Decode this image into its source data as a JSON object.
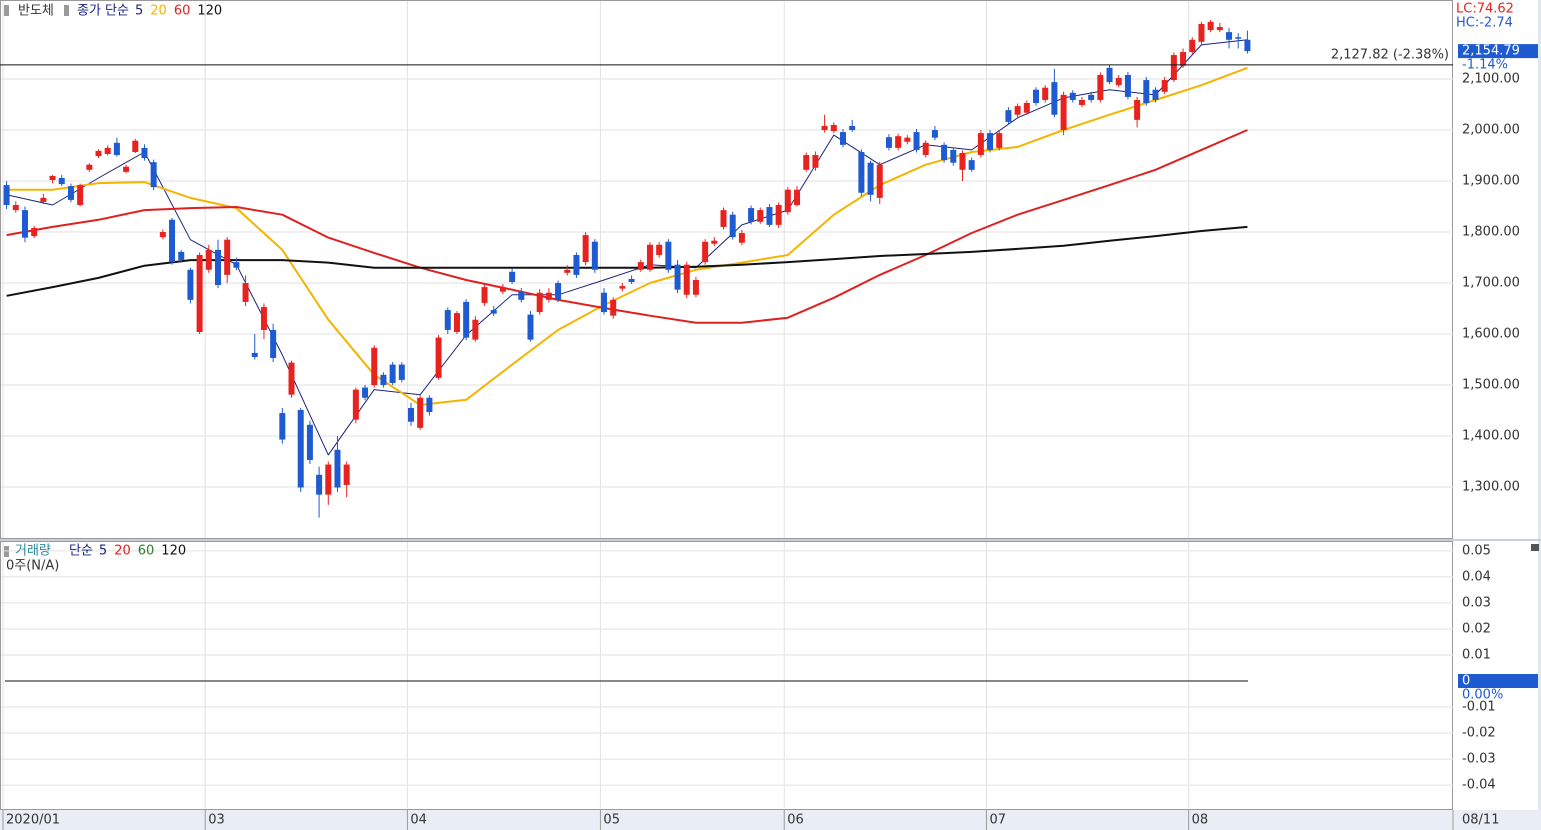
{
  "chart_data": [
    {
      "type": "candlestick",
      "title": "반도체",
      "ma_label": "종가 단순",
      "lc_label": "LC:74.62",
      "hc_label": "HC:-2.74",
      "categories": [
        "2020/01",
        null,
        null,
        null,
        null,
        null,
        null,
        null,
        null,
        null,
        null,
        null,
        null,
        null,
        null,
        null,
        null,
        null,
        null,
        null,
        null,
        null,
        "03",
        null,
        null,
        null,
        null,
        null,
        null,
        null,
        null,
        null,
        null,
        null,
        null,
        null,
        null,
        null,
        null,
        null,
        null,
        null,
        null,
        null,
        "04",
        null,
        null,
        null,
        null,
        null,
        null,
        null,
        null,
        null,
        null,
        null,
        null,
        null,
        null,
        null,
        null,
        null,
        null,
        null,
        null,
        "05",
        null,
        null,
        null,
        null,
        null,
        null,
        null,
        null,
        null,
        null,
        null,
        null,
        null,
        null,
        null,
        null,
        null,
        null,
        null,
        "06",
        null,
        null,
        null,
        null,
        null,
        null,
        null,
        null,
        null,
        null,
        null,
        null,
        null,
        null,
        null,
        null,
        null,
        null,
        null,
        null,
        null,
        "07",
        null,
        null,
        null,
        null,
        null,
        null,
        null,
        null,
        null,
        null,
        null,
        null,
        null,
        null,
        null,
        null,
        null,
        null,
        null,
        null,
        null,
        "08",
        null,
        null,
        null,
        null,
        null,
        null
      ],
      "x_end_label": "08/11",
      "opens": [
        1892,
        1843,
        1843,
        1792,
        1859,
        1902,
        1906,
        1890,
        1853,
        1922,
        1949,
        1953,
        1975,
        1918,
        1957,
        1965,
        1937,
        1790,
        1824,
        1761,
        1726,
        1604,
        1726,
        1765,
        1716,
        1741,
        1663,
        1563,
        1608,
        1608,
        1445,
        1481,
        1451,
        1422,
        1324,
        1285,
        1373,
        1304,
        1432,
        1495,
        1500,
        1520,
        1540,
        1540,
        1455,
        1416,
        1475,
        1514,
        1647,
        1604,
        1663,
        1589,
        1661,
        1647,
        1683,
        1722,
        1683,
        1638,
        1643,
        1667,
        1700,
        1720,
        1755,
        1741,
        1781,
        1681,
        1636,
        1689,
        1708,
        1726,
        1726,
        1755,
        1781,
        1736,
        1677,
        1677,
        1741,
        1777,
        1810,
        1834,
        1779,
        1847,
        1820,
        1849,
        1814,
        1839,
        1853,
        1922,
        1926,
        2000,
        1998,
        1996,
        2008,
        1957,
        1936,
        1867,
        1986,
        1965,
        1977,
        1996,
        1951,
        2000,
        1971,
        1961,
        1922,
        1941,
        1951,
        1994,
        1965,
        2039,
        2030,
        2034,
        2079,
        2059,
        2094,
        2000,
        2073,
        2049,
        2069,
        2059,
        2122,
        2088,
        2108,
        2020,
        2098,
        2079,
        2075,
        2098,
        2126,
        2153,
        2173,
        2196,
        2196,
        2192,
        2182,
        2177
      ],
      "highs": [
        1900,
        1860,
        1850,
        1812,
        1875,
        1912,
        1912,
        1895,
        1895,
        1935,
        1962,
        1970,
        1985,
        1932,
        1983,
        1972,
        1942,
        1805,
        1828,
        1765,
        1730,
        1760,
        1775,
        1785,
        1790,
        1750,
        1715,
        1600,
        1660,
        1620,
        1455,
        1548,
        1455,
        1430,
        1340,
        1350,
        1400,
        1350,
        1495,
        1500,
        1578,
        1525,
        1545,
        1545,
        1465,
        1480,
        1480,
        1598,
        1652,
        1645,
        1668,
        1635,
        1698,
        1655,
        1698,
        1728,
        1690,
        1645,
        1688,
        1690,
        1705,
        1735,
        1760,
        1800,
        1786,
        1690,
        1672,
        1700,
        1715,
        1746,
        1780,
        1780,
        1786,
        1745,
        1742,
        1712,
        1786,
        1790,
        1848,
        1840,
        1804,
        1852,
        1848,
        1855,
        1858,
        1888,
        1890,
        1956,
        1958,
        2030,
        2015,
        2002,
        2020,
        1962,
        1940,
        1938,
        1992,
        1993,
        1990,
        2002,
        1980,
        2008,
        1976,
        1966,
        1960,
        1946,
        2000,
        2000,
        2000,
        2045,
        2052,
        2058,
        2084,
        2088,
        2120,
        2075,
        2078,
        2065,
        2075,
        2113,
        2128,
        2108,
        2114,
        2065,
        2104,
        2084,
        2104,
        2152,
        2160,
        2182,
        2212,
        2216,
        2210,
        2200,
        2190,
        2195
      ],
      "lows": [
        1845,
        1838,
        1780,
        1788,
        1855,
        1896,
        1890,
        1858,
        1850,
        1918,
        1945,
        1950,
        1948,
        1915,
        1955,
        1940,
        1882,
        1786,
        1736,
        1740,
        1660,
        1600,
        1720,
        1690,
        1700,
        1725,
        1655,
        1550,
        1590,
        1545,
        1385,
        1475,
        1290,
        1345,
        1240,
        1265,
        1290,
        1280,
        1425,
        1470,
        1495,
        1495,
        1500,
        1505,
        1420,
        1412,
        1440,
        1510,
        1600,
        1600,
        1588,
        1585,
        1655,
        1635,
        1678,
        1698,
        1662,
        1585,
        1638,
        1662,
        1662,
        1715,
        1710,
        1735,
        1720,
        1638,
        1630,
        1684,
        1698,
        1722,
        1722,
        1750,
        1720,
        1680,
        1670,
        1672,
        1736,
        1772,
        1805,
        1785,
        1774,
        1815,
        1816,
        1810,
        1808,
        1834,
        1850,
        1918,
        1920,
        1995,
        1994,
        1966,
        1996,
        1870,
        1860,
        1855,
        1960,
        1960,
        1972,
        1956,
        1946,
        1980,
        1936,
        1930,
        1900,
        1918,
        1946,
        1956,
        1960,
        2010,
        2025,
        2030,
        2048,
        2054,
        2025,
        1990,
        2054,
        2045,
        2054,
        2054,
        2090,
        2084,
        2060,
        2005,
        2048,
        2054,
        2070,
        2094,
        2122,
        2148,
        2168,
        2192,
        2192,
        2160,
        2160,
        2150
      ],
      "closes": [
        1853,
        1853,
        1789,
        1808,
        1867,
        1910,
        1894,
        1863,
        1892,
        1932,
        1959,
        1965,
        1951,
        1928,
        1979,
        1945,
        1888,
        1800,
        1741,
        1745,
        1667,
        1755,
        1765,
        1696,
        1785,
        1730,
        1700,
        1555,
        1653,
        1553,
        1393,
        1544,
        1299,
        1353,
        1285,
        1344,
        1299,
        1344,
        1491,
        1475,
        1573,
        1500,
        1504,
        1510,
        1428,
        1475,
        1447,
        1593,
        1608,
        1641,
        1593,
        1628,
        1692,
        1640,
        1691,
        1702,
        1667,
        1589,
        1681,
        1681,
        1667,
        1726,
        1716,
        1794,
        1726,
        1643,
        1667,
        1694,
        1702,
        1741,
        1775,
        1775,
        1726,
        1687,
        1736,
        1706,
        1781,
        1783,
        1843,
        1790,
        1798,
        1820,
        1843,
        1814,
        1853,
        1883,
        1883,
        1951,
        1951,
        2008,
        2010,
        1971,
        2000,
        1877,
        1873,
        1932,
        1965,
        1988,
        1985,
        1961,
        1975,
        1985,
        1941,
        1936,
        1955,
        1922,
        1994,
        1961,
        1994,
        2016,
        2047,
        2053,
        2053,
        2083,
        2030,
        2069,
        2059,
        2059,
        2059,
        2108,
        2094,
        2102,
        2065,
        2059,
        2053,
        2059,
        2098,
        2147,
        2153,
        2177,
        2208,
        2212,
        2202,
        2177,
        2179,
        2154.79
      ],
      "up_color": "#e8231f",
      "down_color": "#1f5bd0",
      "series": [
        {
          "name": "5",
          "color": "#1a237e",
          "x": [
            0,
            5,
            10,
            15,
            20,
            25,
            30,
            35,
            40,
            45,
            50,
            55,
            60,
            65,
            70,
            75,
            80,
            85,
            90,
            95,
            100,
            105,
            110,
            115,
            120,
            125,
            130,
            135
          ],
          "values": [
            1873,
            1853,
            1906,
            1957,
            1785,
            1736,
            1559,
            1363,
            1491,
            1481,
            1598,
            1677,
            1677,
            1706,
            1736,
            1730,
            1814,
            1843,
            1990,
            1932,
            1971,
            1961,
            2024,
            2063,
            2079,
            2069,
            2167,
            2177
          ]
        },
        {
          "name": "20",
          "color": "#f5b400",
          "x": [
            0,
            5,
            10,
            15,
            20,
            25,
            30,
            35,
            40,
            45,
            50,
            55,
            60,
            65,
            70,
            75,
            80,
            85,
            90,
            95,
            100,
            105,
            110,
            115,
            120,
            125,
            130,
            135
          ],
          "values": [
            1883,
            1883,
            1896,
            1898,
            1867,
            1847,
            1765,
            1628,
            1520,
            1461,
            1471,
            1540,
            1608,
            1657,
            1700,
            1726,
            1740,
            1755,
            1834,
            1892,
            1932,
            1957,
            1967,
            2000,
            2030,
            2059,
            2088,
            2122
          ]
        },
        {
          "name": "60",
          "color": "#e02020",
          "x": [
            0,
            5,
            10,
            15,
            20,
            25,
            30,
            35,
            40,
            45,
            50,
            55,
            60,
            65,
            70,
            75,
            80,
            85,
            90,
            95,
            100,
            105,
            110,
            115,
            120,
            125,
            130,
            135
          ],
          "values": [
            1794,
            1810,
            1824,
            1843,
            1847,
            1849,
            1834,
            1789,
            1759,
            1730,
            1706,
            1687,
            1667,
            1651,
            1636,
            1622,
            1622,
            1632,
            1671,
            1716,
            1755,
            1798,
            1834,
            1863,
            1892,
            1922,
            1961,
            2000
          ]
        },
        {
          "name": "120",
          "color": "#111111",
          "x": [
            0,
            5,
            10,
            15,
            20,
            25,
            30,
            35,
            40,
            45,
            50,
            55,
            60,
            65,
            70,
            75,
            80,
            85,
            90,
            95,
            100,
            105,
            110,
            115,
            120,
            125,
            130,
            135
          ],
          "values": [
            1675,
            1692,
            1710,
            1734,
            1745,
            1745,
            1745,
            1740,
            1730,
            1730,
            1730,
            1730,
            1730,
            1730,
            1730,
            1732,
            1736,
            1741,
            1747,
            1753,
            1757,
            1761,
            1767,
            1773,
            1783,
            1792,
            1802,
            1810
          ]
        }
      ],
      "reference_line": {
        "value": 2127.82,
        "label": "2,127.82 (-2.38%)"
      },
      "last_price": {
        "value": 2154.79,
        "label": "2,154.79",
        "change_label": "-1.14%"
      },
      "ylim": [
        1200,
        2255
      ],
      "yticks": [
        {
          "value": 2100,
          "label": "2,100.00"
        },
        {
          "value": 2000,
          "label": "2,000.00"
        },
        {
          "value": 1900,
          "label": "1,900.00"
        },
        {
          "value": 1800,
          "label": "1,800.00"
        },
        {
          "value": 1700,
          "label": "1,700.00"
        },
        {
          "value": 1600,
          "label": "1,600.00"
        },
        {
          "value": 1500,
          "label": "1,500.00"
        },
        {
          "value": 1400,
          "label": "1,400.00"
        },
        {
          "value": 1300,
          "label": "1,300.00"
        }
      ],
      "grid": true
    },
    {
      "type": "bar",
      "title": "거래량",
      "ma_label": "단순",
      "status_label": "0주(N/A)",
      "series": [
        {
          "name": "5",
          "color": "#1a237e"
        },
        {
          "name": "20",
          "color": "#e02020"
        },
        {
          "name": "60",
          "color": "#2e7d32"
        },
        {
          "name": "120",
          "color": "#111111"
        }
      ],
      "last_value": {
        "value": 0,
        "label": "0",
        "change_label": "0.00%"
      },
      "ylim": [
        -0.0488,
        0.0538
      ],
      "yticks": [
        0.05,
        0.04,
        0.03,
        0.02,
        0.01,
        -0.01,
        -0.02,
        -0.03,
        -0.04
      ],
      "grid": true
    }
  ]
}
